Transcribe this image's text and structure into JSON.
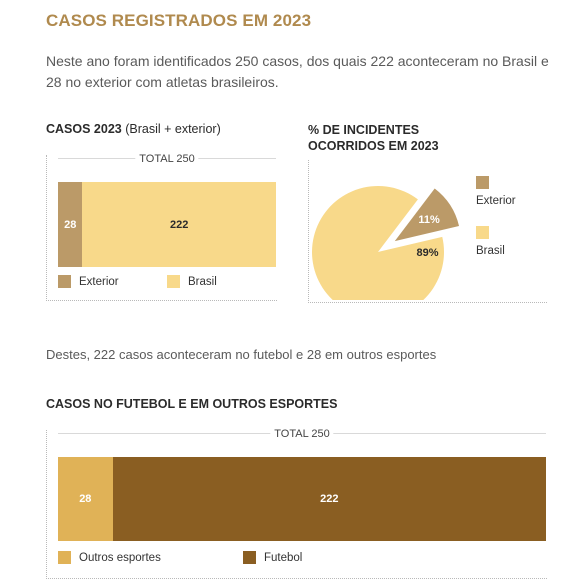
{
  "title": "CASOS REGISTRADOS EM 2023",
  "intro": "Neste ano foram identificados 250 casos, dos quais 222 aconteceram no Brasil e 28 no exterior com atletas brasileiros.",
  "middle_text": "Destes, 222 casos aconteceram no futebol e 28 em outros esportes",
  "colors": {
    "title": "#b08a4e",
    "exterior": "#bb9a68",
    "brasil": "#f8d98a",
    "outros": "#e0b257",
    "futebol": "#8a5e22"
  },
  "chart_data": [
    {
      "type": "bar",
      "orientation": "horizontal-stacked",
      "title": "CASOS 2023",
      "subtitle": "(Brasil + exterior)",
      "total_label": "TOTAL 250",
      "total": 250,
      "series": [
        {
          "name": "Exterior",
          "value": 28,
          "label": "28",
          "color": "#bb9a68"
        },
        {
          "name": "Brasil",
          "value": 222,
          "label": "222",
          "color": "#f8d98a"
        }
      ],
      "legend": [
        "Exterior",
        "Brasil"
      ]
    },
    {
      "type": "pie",
      "title": "% DE INCIDENTES OCORRIDOS EM 2023",
      "slices": [
        {
          "name": "Exterior",
          "value": 11,
          "label": "11%",
          "color": "#bb9a68",
          "exploded": true
        },
        {
          "name": "Brasil",
          "value": 89,
          "label": "89%",
          "color": "#f8d98a"
        }
      ],
      "legend": [
        "Exterior",
        "Brasil"
      ]
    },
    {
      "type": "bar",
      "orientation": "horizontal-stacked",
      "title": "CASOS NO FUTEBOL E EM OUTROS ESPORTES",
      "total_label": "TOTAL 250",
      "total": 250,
      "series": [
        {
          "name": "Outros esportes",
          "value": 28,
          "label": "28",
          "color": "#e0b257"
        },
        {
          "name": "Futebol",
          "value": 222,
          "label": "222",
          "color": "#8a5e22"
        }
      ],
      "legend": [
        "Outros esportes",
        "Futebol"
      ]
    }
  ]
}
